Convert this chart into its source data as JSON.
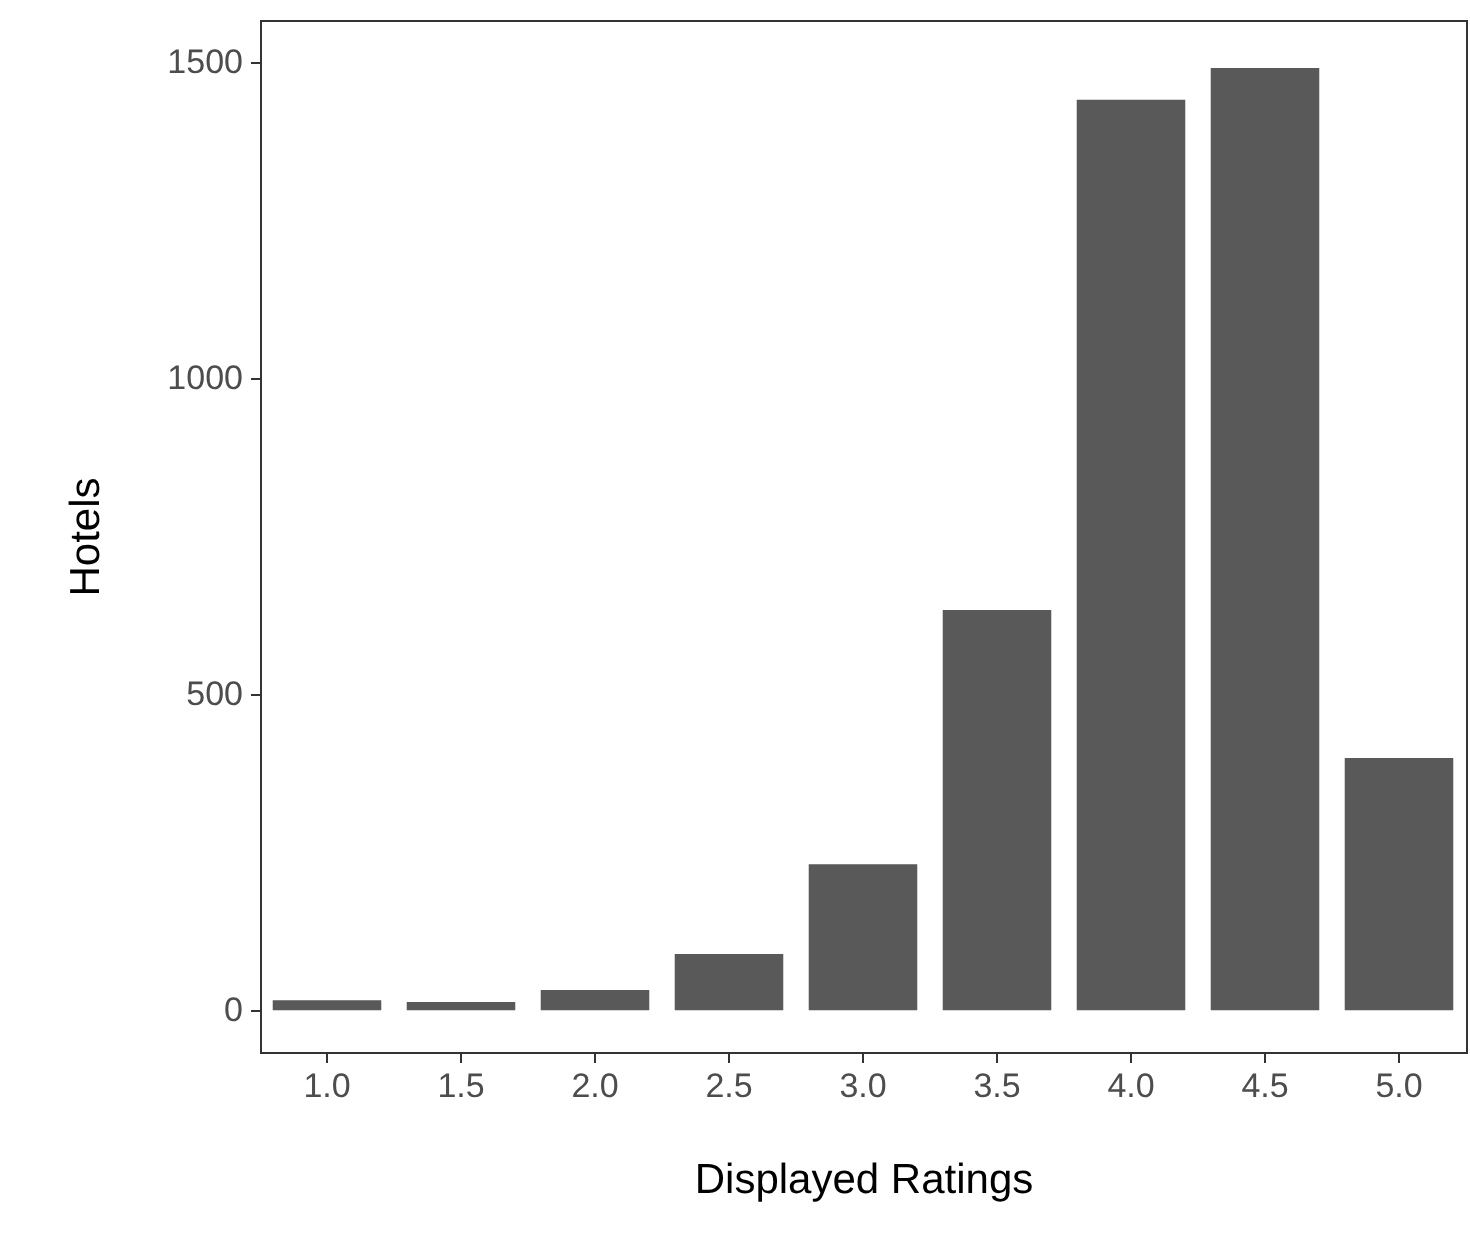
{
  "chart_data": {
    "type": "bar",
    "xlabel": "Displayed Ratings",
    "ylabel": "Hotels",
    "categories": [
      "1.0",
      "1.5",
      "2.0",
      "2.5",
      "3.0",
      "3.5",
      "4.0",
      "4.5",
      "5.0"
    ],
    "values": [
      16,
      13,
      32,
      89,
      231,
      633,
      1440,
      1490,
      399
    ],
    "color": "#595959",
    "ylim": [
      -66,
      1566
    ],
    "yticks": [
      0,
      500,
      1000,
      1500
    ],
    "grid": false
  }
}
